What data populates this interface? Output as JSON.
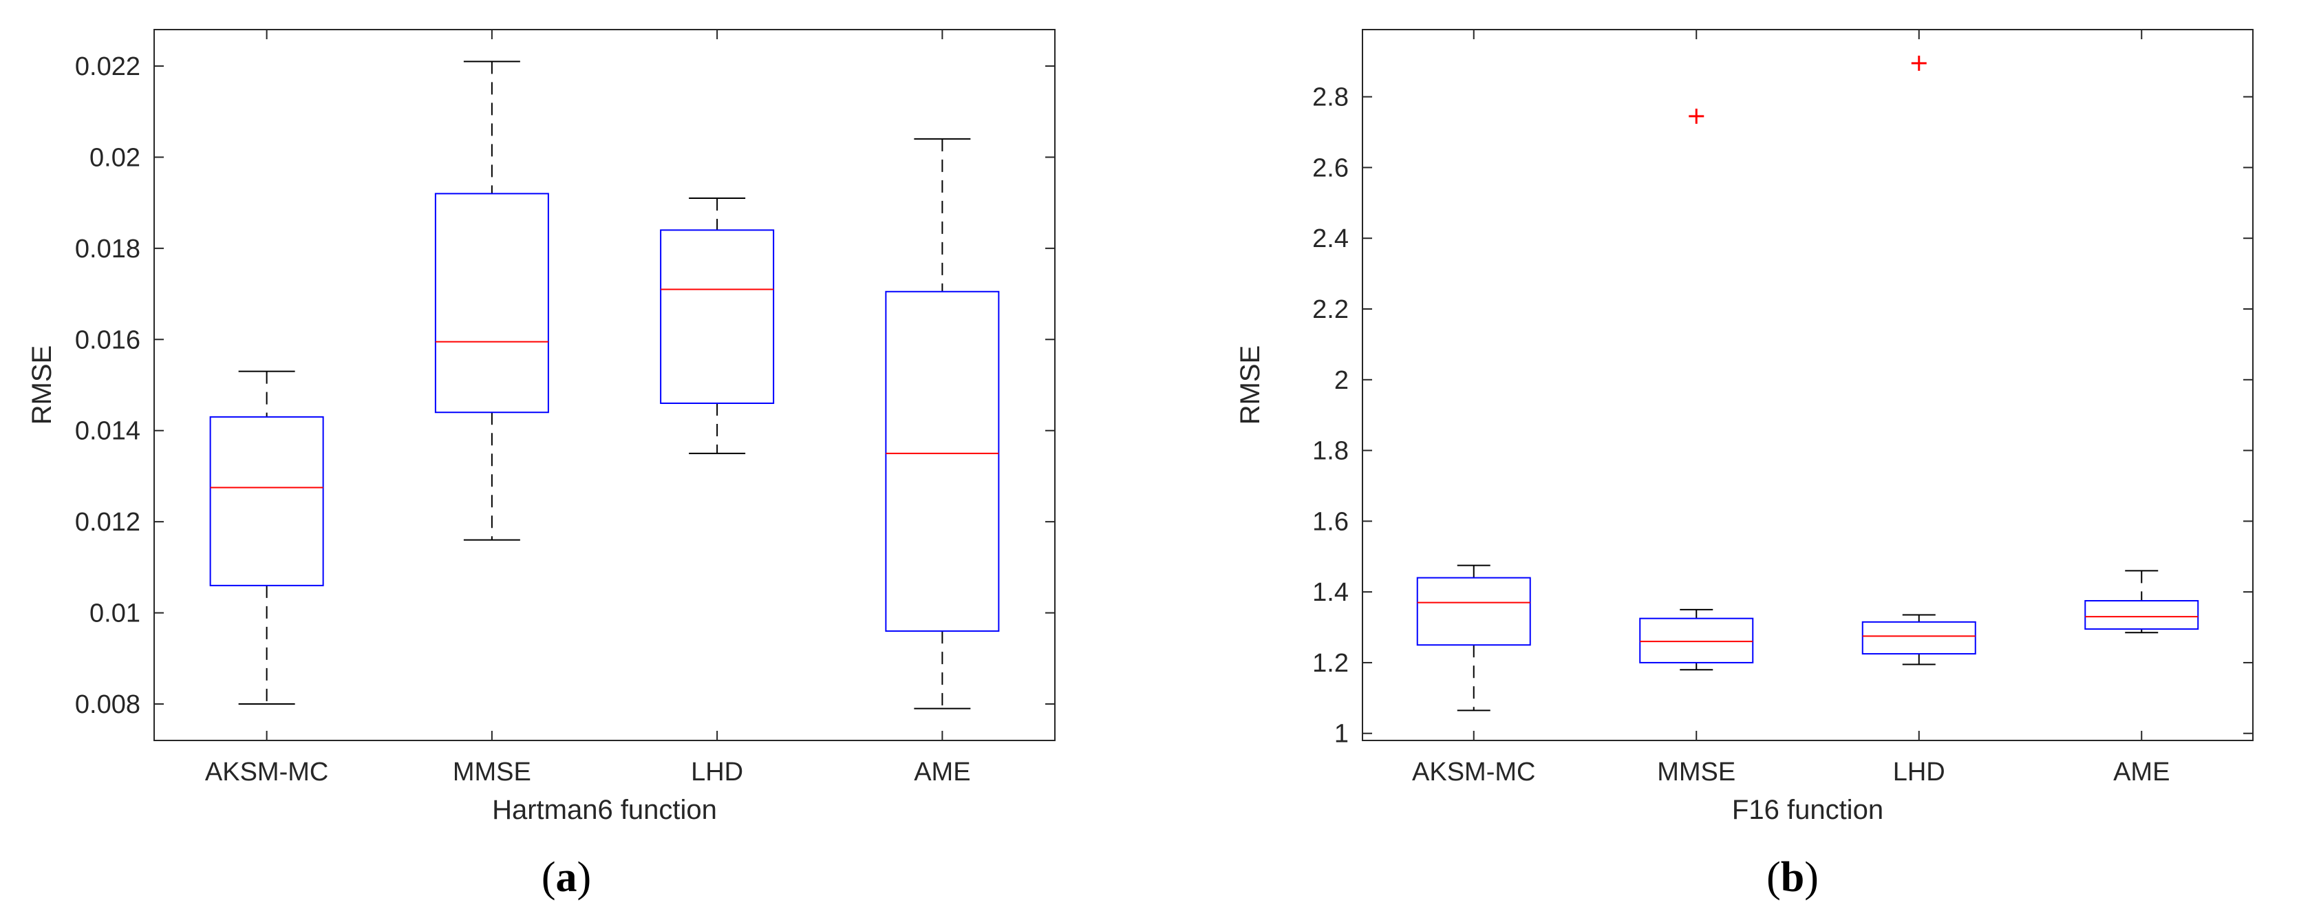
{
  "chart_data": [
    {
      "type": "box",
      "panel_label": "a",
      "title": "",
      "xlabel": "Hartman6 function",
      "ylabel": "RMSE",
      "ylim": [
        0.0072,
        0.0228
      ],
      "yticks": [
        0.008,
        0.01,
        0.012,
        0.014,
        0.016,
        0.018,
        0.02,
        0.022
      ],
      "ytick_labels": [
        "0.008",
        "0.01",
        "0.012",
        "0.014",
        "0.016",
        "0.018",
        "0.02",
        "0.022"
      ],
      "categories": [
        "AKSM-MC",
        "MMSE",
        "LHD",
        "AME"
      ],
      "boxes": [
        {
          "whisker_low": 0.008,
          "q1": 0.0106,
          "median": 0.01275,
          "q3": 0.0143,
          "whisker_high": 0.0153,
          "outliers": []
        },
        {
          "whisker_low": 0.0116,
          "q1": 0.0144,
          "median": 0.01595,
          "q3": 0.0192,
          "whisker_high": 0.0221,
          "outliers": []
        },
        {
          "whisker_low": 0.0135,
          "q1": 0.0146,
          "median": 0.0171,
          "q3": 0.0184,
          "whisker_high": 0.0191,
          "outliers": []
        },
        {
          "whisker_low": 0.0079,
          "q1": 0.0096,
          "median": 0.0135,
          "q3": 0.01705,
          "whisker_high": 0.0204,
          "outliers": []
        }
      ]
    },
    {
      "type": "box",
      "panel_label": "b",
      "title": "",
      "xlabel": "F16 function",
      "ylabel": "RMSE",
      "ylim": [
        0.98,
        2.99
      ],
      "yticks": [
        1,
        1.2,
        1.4,
        1.6,
        1.8,
        2,
        2.2,
        2.4,
        2.6,
        2.8
      ],
      "ytick_labels": [
        "1",
        "1.2",
        "1.4",
        "1.6",
        "1.8",
        "2",
        "2.2",
        "2.4",
        "2.6",
        "2.8"
      ],
      "categories": [
        "AKSM-MC",
        "MMSE",
        "LHD",
        "AME"
      ],
      "boxes": [
        {
          "whisker_low": 1.065,
          "q1": 1.25,
          "median": 1.37,
          "q3": 1.44,
          "whisker_high": 1.475,
          "outliers": []
        },
        {
          "whisker_low": 1.18,
          "q1": 1.2,
          "median": 1.26,
          "q3": 1.325,
          "whisker_high": 1.35,
          "outliers": [
            2.745
          ]
        },
        {
          "whisker_low": 1.195,
          "q1": 1.225,
          "median": 1.275,
          "q3": 1.315,
          "whisker_high": 1.335,
          "outliers": [
            2.895
          ]
        },
        {
          "whisker_low": 1.285,
          "q1": 1.295,
          "median": 1.33,
          "q3": 1.375,
          "whisker_high": 1.46,
          "outliers": []
        }
      ]
    }
  ],
  "colors": {
    "box": "#0000ff",
    "median": "#ff0000",
    "whisker": "#000000",
    "outlier": "#ff0000",
    "axis": "#262626"
  }
}
